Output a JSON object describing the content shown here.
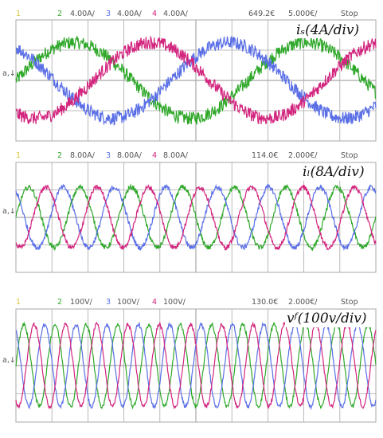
{
  "colors": {
    "ch1": "#d9c23a",
    "ch2": "#2fa82a",
    "ch3": "#5a6fe6",
    "ch4": "#d2257e",
    "header": "#555555",
    "grid": "#a8a8a8"
  },
  "panels": [
    {
      "header": {
        "ch1": "1",
        "ch2": "2",
        "ch2_scale": "4.00A/",
        "ch3": "3",
        "ch3_scale": "4.00A/",
        "ch4": "4",
        "ch4_scale": "4.00A/",
        "position": "649.2€",
        "timebase": "5.000€/",
        "status": "Stop"
      },
      "annotation": "iₛ(4A/div)",
      "gnd_marker": "a,↓"
    },
    {
      "header": {
        "ch1": "1",
        "ch2": "2",
        "ch2_scale": "8.00A/",
        "ch3": "3",
        "ch3_scale": "8.00A/",
        "ch4": "4",
        "ch4_scale": "8.00A/",
        "position": "114.0€",
        "timebase": "2.000€/",
        "status": "Stop"
      },
      "annotation": "iₗ(8A/div)",
      "gnd_marker": "a,↓"
    },
    {
      "header": {
        "ch1": "1",
        "ch2": "2",
        "ch2_scale": "100V/",
        "ch3": "3",
        "ch3_scale": "100V/",
        "ch4": "4",
        "ch4_scale": "100V/",
        "position": "130.0€",
        "timebase": "2.000€/",
        "status": "Stop"
      },
      "annotation": "vᶠ(100v/div)",
      "gnd_marker": "a,↓"
    }
  ],
  "chart_data": [
    {
      "type": "line",
      "title": "",
      "xlabel": "",
      "ylabel": "",
      "x_divisions": 10,
      "y_divisions": 4,
      "grid": true,
      "series": [
        {
          "channel": "2",
          "color": "#2fa82a",
          "amplitude_div": 1.25,
          "offset_div": 0,
          "cycles": 1.55,
          "phase_deg": 0,
          "noise": 0.22
        },
        {
          "channel": "3",
          "color": "#5a6fe6",
          "amplitude_div": 1.25,
          "offset_div": 0,
          "cycles": 1.55,
          "phase_deg": 120,
          "noise": 0.22
        },
        {
          "channel": "4",
          "color": "#d2257e",
          "amplitude_div": 1.25,
          "offset_div": 0,
          "cycles": 1.55,
          "phase_deg": 240,
          "noise": 0.22
        }
      ]
    },
    {
      "type": "line",
      "title": "",
      "xlabel": "",
      "ylabel": "",
      "x_divisions": 10,
      "y_divisions": 4,
      "grid": true,
      "series": [
        {
          "channel": "2",
          "color": "#2fa82a",
          "amplitude_div": 1.1,
          "offset_div": 0,
          "cycles": 7.0,
          "phase_deg": 0,
          "noise": 0.09
        },
        {
          "channel": "3",
          "color": "#5a6fe6",
          "amplitude_div": 1.1,
          "offset_div": 0,
          "cycles": 7.0,
          "phase_deg": 120,
          "noise": 0.09
        },
        {
          "channel": "4",
          "color": "#d2257e",
          "amplitude_div": 1.1,
          "offset_div": 0,
          "cycles": 7.0,
          "phase_deg": 240,
          "noise": 0.09
        }
      ]
    },
    {
      "type": "line",
      "title": "",
      "xlabel": "",
      "ylabel": "",
      "x_divisions": 10,
      "y_divisions": 4,
      "grid": true,
      "series": [
        {
          "channel": "2",
          "color": "#2fa82a",
          "amplitude_div": 1.45,
          "offset_div": 0,
          "cycles": 11.5,
          "phase_deg": 0,
          "noise": 0.07
        },
        {
          "channel": "3",
          "color": "#5a6fe6",
          "amplitude_div": 1.45,
          "offset_div": 0,
          "cycles": 11.5,
          "phase_deg": 120,
          "noise": 0.07
        },
        {
          "channel": "4",
          "color": "#d2257e",
          "amplitude_div": 1.45,
          "offset_div": 0,
          "cycles": 11.5,
          "phase_deg": 240,
          "noise": 0.07
        }
      ]
    }
  ]
}
